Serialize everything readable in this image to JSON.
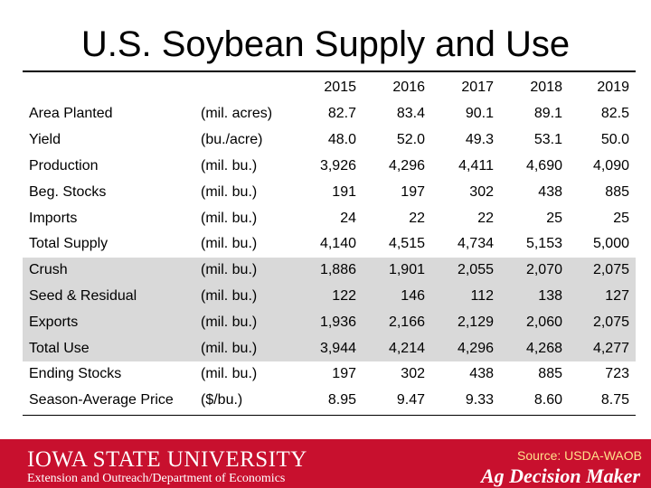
{
  "title": "U.S. Soybean Supply and Use",
  "table": {
    "years": [
      "2015",
      "2016",
      "2017",
      "2018",
      "2019"
    ],
    "rows": [
      {
        "label": "Area Planted",
        "unit": "(mil. acres)",
        "values": [
          "82.7",
          "83.4",
          "90.1",
          "89.1",
          "82.5"
        ]
      },
      {
        "label": "Yield",
        "unit": "(bu./acre)",
        "values": [
          "48.0",
          "52.0",
          "49.3",
          "53.1",
          "50.0"
        ]
      },
      {
        "label": "Production",
        "unit": "(mil. bu.)",
        "values": [
          "3,926",
          "4,296",
          "4,411",
          "4,690",
          "4,090"
        ]
      },
      {
        "label": "Beg. Stocks",
        "unit": "(mil. bu.)",
        "values": [
          "191",
          "197",
          "302",
          "438",
          "885"
        ]
      },
      {
        "label": "Imports",
        "unit": "(mil. bu.)",
        "values": [
          "24",
          "22",
          "22",
          "25",
          "25"
        ]
      },
      {
        "label": "Total Supply",
        "unit": "(mil. bu.)",
        "values": [
          "4,140",
          "4,515",
          "4,734",
          "5,153",
          "5,000"
        ]
      },
      {
        "label": "Crush",
        "unit": "(mil. bu.)",
        "values": [
          "1,886",
          "1,901",
          "2,055",
          "2,070",
          "2,075"
        ]
      },
      {
        "label": "Seed & Residual",
        "unit": "(mil. bu.)",
        "values": [
          "122",
          "146",
          "112",
          "138",
          "127"
        ]
      },
      {
        "label": "Exports",
        "unit": "(mil. bu.)",
        "values": [
          "1,936",
          "2,166",
          "2,129",
          "2,060",
          "2,075"
        ]
      },
      {
        "label": "Total Use",
        "unit": "(mil. bu.)",
        "values": [
          "3,944",
          "4,214",
          "4,296",
          "4,268",
          "4,277"
        ]
      },
      {
        "label": "Ending Stocks",
        "unit": "(mil. bu.)",
        "values": [
          "197",
          "302",
          "438",
          "885",
          "723"
        ]
      },
      {
        "label": "Season-Average Price",
        "unit": "($/bu.)",
        "values": [
          "8.95",
          "9.47",
          "9.33",
          "8.60",
          "8.75"
        ]
      }
    ]
  },
  "footer": {
    "logo": "IOWA STATE UNIVERSITY",
    "department": "Extension and Outreach/Department of Economics",
    "source": "Source: USDA-WAOB",
    "brand": "Ag Decision Maker"
  },
  "colors": {
    "footer_red": "#c8102e",
    "shaded_rows": "#d9d9d9"
  }
}
